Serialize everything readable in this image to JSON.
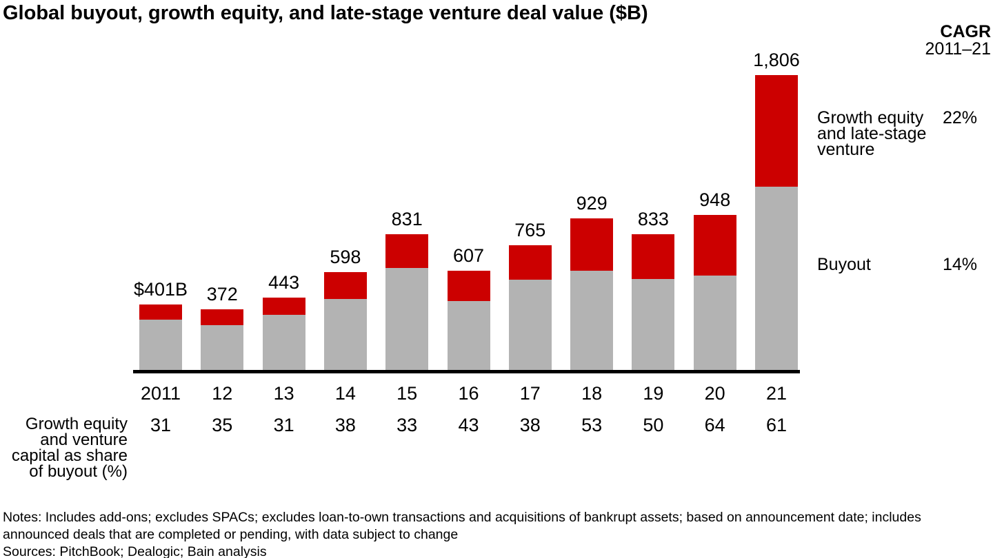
{
  "title": "Global buyout, growth equity, and late-stage venture deal value ($B)",
  "cagr": {
    "header": "CAGR",
    "period": "2011–21",
    "growth_value": "22%",
    "buyout_value": "14%"
  },
  "legend": {
    "growth_label": "Growth equity\nand late-stage\nventure",
    "buyout_label": "Buyout"
  },
  "row_label": "Growth equity\nand venture\ncapital as share\nof buyout (%)",
  "notes": "Notes: Includes add-ons; excludes SPACs; excludes loan-to-own transactions and acquisitions of bankrupt assets; based on announcement date; includes\nannounced deals that are completed or pending, with data subject to change",
  "sources": "Sources: PitchBook; Dealogic; Bain analysis",
  "colors": {
    "buyout": "#b3b3b3",
    "growth": "#cc0000",
    "axis": "#000000",
    "text": "#000000"
  },
  "chart_data": {
    "type": "bar",
    "stacked": true,
    "title": "Global buyout, growth equity, and late-stage venture deal value ($B)",
    "categories": [
      "2011",
      "12",
      "13",
      "14",
      "15",
      "16",
      "17",
      "18",
      "19",
      "20",
      "21"
    ],
    "totals": [
      401,
      372,
      443,
      598,
      831,
      607,
      765,
      929,
      833,
      948,
      1806
    ],
    "total_labels": [
      "$401B",
      "372",
      "443",
      "598",
      "831",
      "607",
      "765",
      "929",
      "833",
      "948",
      "1,806"
    ],
    "growth_share_of_buyout_pct": [
      31,
      35,
      31,
      38,
      33,
      43,
      38,
      53,
      50,
      64,
      61
    ],
    "series": [
      {
        "name": "Buyout",
        "color": "#b3b3b3",
        "cagr_2011_21": "14%",
        "values": [
          306,
          276,
          338,
          433,
          625,
          424,
          554,
          607,
          555,
          578,
          1122
        ]
      },
      {
        "name": "Growth equity and late-stage venture",
        "color": "#cc0000",
        "cagr_2011_21": "22%",
        "values": [
          95,
          96,
          105,
          165,
          206,
          183,
          211,
          322,
          278,
          370,
          684
        ]
      }
    ],
    "ylim": [
      0,
      1900
    ],
    "grid": false,
    "legend_position": "right",
    "value_labels": "above bars",
    "unit": "$B"
  }
}
